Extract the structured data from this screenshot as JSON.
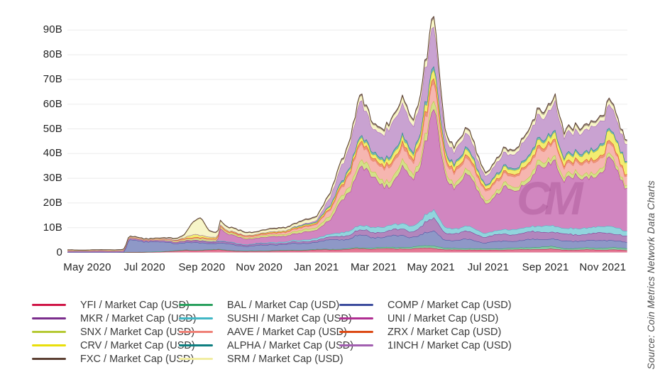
{
  "source_note": "Source: Coin Metrics Network Data Charts",
  "watermark": "CM",
  "chart_data": {
    "type": "area",
    "stacked": true,
    "title": "",
    "xlabel": "",
    "ylabel": "Market Cap (USD)",
    "unit": "billions of USD",
    "ylim": [
      0,
      100
    ],
    "grid": "horizontal",
    "legend_position": "bottom",
    "y_ticks": [
      {
        "v": 0,
        "label": "0"
      },
      {
        "v": 10,
        "label": "10B"
      },
      {
        "v": 20,
        "label": "20B"
      },
      {
        "v": 30,
        "label": "30B"
      },
      {
        "v": 40,
        "label": "40B"
      },
      {
        "v": 50,
        "label": "50B"
      },
      {
        "v": 60,
        "label": "60B"
      },
      {
        "v": 70,
        "label": "70B"
      },
      {
        "v": 80,
        "label": "80B"
      },
      {
        "v": 90,
        "label": "90B"
      }
    ],
    "x_ticks": [
      {
        "t": 0,
        "label": "May 2020"
      },
      {
        "t": 2,
        "label": "Jul 2020"
      },
      {
        "t": 4,
        "label": "Sep 2020"
      },
      {
        "t": 6,
        "label": "Nov 2020"
      },
      {
        "t": 8,
        "label": "Jan 2021"
      },
      {
        "t": 10,
        "label": "Mar 2021"
      },
      {
        "t": 12,
        "label": "May 2021"
      },
      {
        "t": 14,
        "label": "Jul 2021"
      },
      {
        "t": 16,
        "label": "Sep 2021"
      },
      {
        "t": 18,
        "label": "Nov 2021"
      }
    ],
    "x_unit_note": "t = months after May 2020 tick",
    "t_range": [
      -0.69,
      18.85
    ],
    "control_t": [
      -0.7,
      0,
      1,
      1.3,
      1.45,
      2,
      2.5,
      3,
      3.3,
      3.45,
      3.7,
      3.95,
      4.25,
      4.55,
      4.65,
      4.9,
      5.5,
      6,
      6.5,
      7,
      7.5,
      8,
      8.5,
      9,
      9.5,
      10,
      10.5,
      11,
      11.4,
      11.8,
      12.1,
      12.5,
      12.8,
      13.3,
      13.9,
      14.4,
      15,
      15.5,
      16,
      16.3,
      16.65,
      17,
      17.5,
      18,
      18.3,
      18.55,
      18.7,
      18.85
    ],
    "legend_order": [
      "YFI",
      "MKR",
      "SNX",
      "CRV",
      "FXC",
      "BAL",
      "SUSHI",
      "AAVE",
      "ALPHA",
      "SRM",
      "COMP",
      "UNI",
      "ZRX",
      "1INCH"
    ],
    "label_suffix": " / Market Cap (USD)",
    "series": [
      {
        "name": "YFI",
        "legend": "YFI / Market Cap (USD)",
        "color": "#d01647",
        "values": [
          0,
          0,
          0,
          0,
          0,
          0,
          0.15,
          0.5,
          0.7,
          0.8,
          0.7,
          0.9,
          0.9,
          1.0,
          1.0,
          0.8,
          0.4,
          0.5,
          0.6,
          0.7,
          0.8,
          1.0,
          1.1,
          1.2,
          1.5,
          1.4,
          1.4,
          1.5,
          1.4,
          1.7,
          1.8,
          1.0,
          1.0,
          1.1,
          0.9,
          1.0,
          1.1,
          1.2,
          1.3,
          1.3,
          1.0,
          1.0,
          1.1,
          1.0,
          1.1,
          0.95,
          0.9,
          0.85
        ]
      },
      {
        "name": "BAL",
        "legend": "BAL / Market Cap (USD)",
        "color": "#2aa05e",
        "values": [
          0,
          0,
          0,
          0.1,
          0.15,
          0.15,
          0.18,
          0.2,
          0.2,
          0.2,
          0.2,
          0.2,
          0.2,
          0.2,
          0.2,
          0.18,
          0.15,
          0.18,
          0.2,
          0.2,
          0.22,
          0.25,
          0.28,
          0.3,
          0.4,
          0.5,
          0.6,
          0.7,
          0.7,
          1.0,
          1.2,
          0.6,
          0.6,
          0.65,
          0.5,
          0.6,
          0.7,
          0.85,
          1.0,
          1.0,
          0.7,
          0.7,
          0.75,
          0.8,
          0.85,
          0.8,
          0.8,
          0.8
        ]
      },
      {
        "name": "COMP",
        "legend": "COMP / Market Cap (USD)",
        "color": "#3d4d9e",
        "values": [
          0,
          0,
          0,
          0,
          4.8,
          4.5,
          3.6,
          3.2,
          3.0,
          3.0,
          2.8,
          2.8,
          2.6,
          2.6,
          2.6,
          2.4,
          2.0,
          2.2,
          2.3,
          2.5,
          2.7,
          3.0,
          3.5,
          4.0,
          5.0,
          4.2,
          4.4,
          4.5,
          4.2,
          5.0,
          5.5,
          3.5,
          3.3,
          3.5,
          2.5,
          2.8,
          3.0,
          3.1,
          3.2,
          3.2,
          2.8,
          2.9,
          3.0,
          3.0,
          3.1,
          2.9,
          2.6,
          2.3
        ]
      },
      {
        "name": "MKR",
        "legend": "MKR / Market Cap (USD)",
        "color": "#7b2e8d",
        "values": [
          0.5,
          0.5,
          0.5,
          0.52,
          0.55,
          0.55,
          0.55,
          0.6,
          0.6,
          0.6,
          0.6,
          0.6,
          0.6,
          0.6,
          0.6,
          0.58,
          0.55,
          0.55,
          0.58,
          0.6,
          0.7,
          0.8,
          1.1,
          1.5,
          2.0,
          2.0,
          2.2,
          2.5,
          2.4,
          4.0,
          5.0,
          3.0,
          2.8,
          3.0,
          2.5,
          2.7,
          2.8,
          2.9,
          3.0,
          3.0,
          2.6,
          2.7,
          2.8,
          2.9,
          3.0,
          2.8,
          2.6,
          2.5
        ]
      },
      {
        "name": "SUSHI",
        "legend": "SUSHI / Market Cap (USD)",
        "color": "#41b7c5",
        "values": [
          0,
          0,
          0,
          0,
          0,
          0,
          0,
          0,
          0.1,
          0.15,
          0.25,
          0.3,
          0.3,
          0.3,
          0.3,
          0.25,
          0.2,
          0.3,
          0.4,
          0.5,
          0.6,
          0.8,
          1.1,
          1.5,
          1.8,
          2.0,
          2.1,
          2.2,
          2.1,
          3.0,
          3.2,
          2.2,
          2.0,
          2.1,
          1.5,
          1.8,
          2.0,
          2.1,
          2.4,
          2.6,
          2.2,
          2.4,
          2.5,
          2.6,
          2.8,
          2.4,
          2.2,
          2.0
        ]
      },
      {
        "name": "UNI",
        "legend": "UNI / Market Cap (USD)",
        "color": "#b02e92",
        "values": [
          0,
          0,
          0,
          0,
          0,
          0,
          0,
          0,
          0,
          0,
          0,
          0,
          0,
          0,
          5.5,
          3.0,
          2.3,
          2.2,
          2.3,
          2.5,
          2.8,
          3.5,
          6.0,
          14.0,
          24.0,
          19.0,
          17.0,
          21.0,
          19.0,
          30.0,
          40.0,
          20.0,
          18.0,
          20.0,
          13.0,
          15.0,
          17.0,
          20.0,
          24.0,
          30.0,
          19.0,
          20.0,
          22.0,
          21.0,
          27.0,
          23.0,
          21.0,
          18.0
        ]
      },
      {
        "name": "SNX",
        "legend": "SNX / Market Cap (USD)",
        "color": "#b5c934",
        "values": [
          0.15,
          0.15,
          0.2,
          0.25,
          0.3,
          0.3,
          0.4,
          0.5,
          0.6,
          0.7,
          0.8,
          0.8,
          0.8,
          0.8,
          0.8,
          0.7,
          0.5,
          0.6,
          0.7,
          0.8,
          1.0,
          1.2,
          1.6,
          2.0,
          2.5,
          2.0,
          2.2,
          2.5,
          2.2,
          3.0,
          3.2,
          2.0,
          1.8,
          1.9,
          1.3,
          1.5,
          1.6,
          1.8,
          2.0,
          2.0,
          1.5,
          1.6,
          1.7,
          1.6,
          1.7,
          1.5,
          1.3,
          1.2
        ]
      },
      {
        "name": "AAVE",
        "legend": "AAVE / Market Cap (USD)",
        "color": "#ef8177",
        "values": [
          0,
          0,
          0,
          0,
          0,
          0,
          0,
          0,
          0,
          0,
          0,
          0,
          0,
          0,
          0,
          0,
          0.5,
          0.5,
          0.6,
          0.8,
          1.0,
          1.2,
          2.5,
          4.0,
          6.5,
          5.0,
          5.2,
          5.5,
          5.0,
          6.5,
          7.5,
          4.5,
          4.2,
          4.5,
          3.5,
          3.9,
          4.2,
          4.7,
          5.2,
          5.8,
          4.0,
          4.2,
          4.4,
          4.2,
          4.4,
          3.9,
          3.5,
          3.2
        ]
      },
      {
        "name": "ZRX",
        "legend": "ZRX / Market Cap (USD)",
        "color": "#dc4a15",
        "values": [
          0.2,
          0.2,
          0.22,
          0.24,
          0.25,
          0.25,
          0.28,
          0.3,
          0.3,
          0.3,
          0.3,
          0.3,
          0.3,
          0.3,
          0.3,
          0.28,
          0.25,
          0.25,
          0.28,
          0.3,
          0.35,
          0.4,
          0.6,
          0.9,
          1.2,
          1.0,
          1.2,
          1.5,
          1.3,
          1.8,
          2.0,
          1.2,
          1.1,
          1.2,
          0.8,
          0.9,
          0.9,
          1.0,
          1.1,
          1.1,
          0.9,
          1.0,
          1.0,
          1.0,
          1.1,
          0.95,
          0.9,
          0.8
        ]
      },
      {
        "name": "CRV",
        "legend": "CRV / Market Cap (USD)",
        "color": "#e9df0b",
        "values": [
          0,
          0,
          0,
          0,
          0,
          0,
          0,
          0,
          0.4,
          0.6,
          1.2,
          1.0,
          0.7,
          0.6,
          0.5,
          0.4,
          0.3,
          0.25,
          0.28,
          0.3,
          0.35,
          0.4,
          0.7,
          0.9,
          1.2,
          1.5,
          1.8,
          2.0,
          1.8,
          2.5,
          3.0,
          1.8,
          1.8,
          2.0,
          1.2,
          1.5,
          1.8,
          2.0,
          2.4,
          2.6,
          2.2,
          2.5,
          2.8,
          3.5,
          4.0,
          4.6,
          4.8,
          4.5
        ]
      },
      {
        "name": "ALPHA",
        "legend": "ALPHA / Market Cap (USD)",
        "color": "#0e7e80",
        "values": [
          0,
          0,
          0,
          0,
          0,
          0,
          0,
          0,
          0,
          0,
          0,
          0,
          0,
          0,
          0,
          0,
          0,
          0.1,
          0.15,
          0.2,
          0.25,
          0.3,
          0.5,
          0.8,
          1.0,
          1.0,
          1.1,
          1.2,
          1.1,
          1.5,
          1.6,
          0.9,
          0.9,
          0.95,
          0.6,
          0.7,
          0.8,
          0.9,
          1.0,
          1.0,
          0.8,
          0.9,
          0.9,
          0.9,
          0.9,
          0.8,
          0.75,
          0.7
        ]
      },
      {
        "name": "1INCH",
        "legend": "1INCH / Market Cap (USD)",
        "color": "#a25fb0",
        "values": [
          0,
          0,
          0,
          0,
          0,
          0,
          0,
          0,
          0,
          0,
          0,
          0,
          0,
          0,
          0,
          0,
          0,
          0,
          0,
          0,
          0.3,
          0.6,
          3.0,
          8.0,
          13.0,
          10.0,
          11.0,
          12.0,
          11.0,
          13.0,
          15.0,
          6.0,
          5.0,
          5.5,
          3.5,
          4.5,
          6.5,
          8.0,
          10.0,
          12.0,
          8.0,
          8.5,
          9.0,
          8.5,
          10.0,
          8.5,
          7.5,
          6.5
        ]
      },
      {
        "name": "SRM",
        "legend": "SRM / Market Cap (USD)",
        "color": "#f1eda2",
        "values": [
          0,
          0,
          0,
          0,
          0,
          0,
          0,
          0.3,
          0.5,
          1.5,
          5.5,
          6.5,
          2.0,
          1.5,
          1.5,
          1.2,
          0.9,
          0.8,
          0.9,
          1.0,
          1.1,
          1.2,
          1.4,
          1.6,
          2.0,
          1.5,
          1.7,
          2.0,
          1.8,
          2.5,
          3.0,
          1.8,
          1.6,
          1.7,
          1.0,
          1.2,
          1.3,
          1.5,
          1.7,
          1.8,
          1.3,
          1.4,
          1.5,
          1.4,
          1.5,
          1.35,
          1.25,
          1.2
        ]
      },
      {
        "name": "FXC",
        "legend": "FXC / Market Cap (USD)",
        "color": "#5c4033",
        "values": [
          0.15,
          0.15,
          0.18,
          0.2,
          0.2,
          0.2,
          0.22,
          0.25,
          0.28,
          0.3,
          0.3,
          0.3,
          0.3,
          0.3,
          0.3,
          0.3,
          0.3,
          0.3,
          0.32,
          0.35,
          0.38,
          0.4,
          0.5,
          0.6,
          0.8,
          0.6,
          0.65,
          0.8,
          0.7,
          0.9,
          1.0,
          0.6,
          0.6,
          0.65,
          0.5,
          0.55,
          0.6,
          0.7,
          0.8,
          0.8,
          0.65,
          0.7,
          0.75,
          0.7,
          0.75,
          0.68,
          0.62,
          0.6
        ]
      }
    ]
  }
}
